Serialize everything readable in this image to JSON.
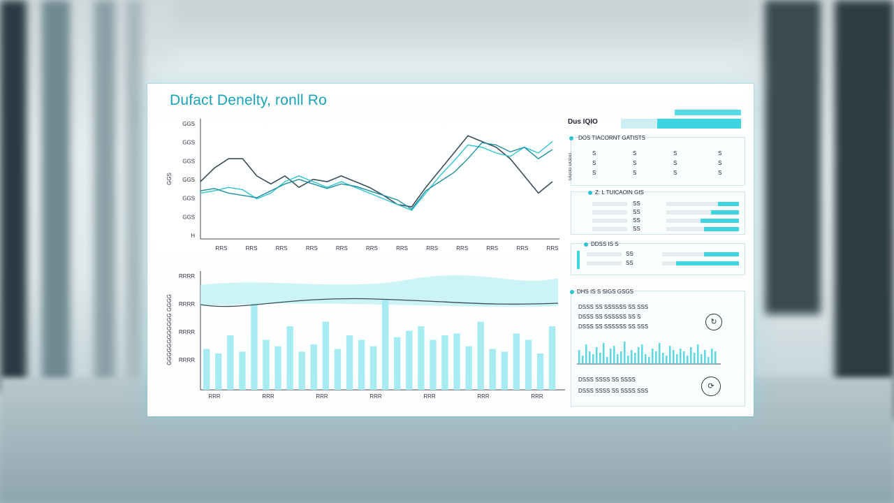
{
  "dashboard": {
    "title": "Dufact Denelty, ronll Ro"
  },
  "top_chart": {
    "y_ticks": [
      "GGS",
      "GGS",
      "GGS",
      "GGS",
      "GGS",
      "GGS",
      "H"
    ],
    "y_label": "GGS",
    "x_ticks": [
      "RRS",
      "RRS",
      "RRS",
      "RRS",
      "RRS",
      "RRS",
      "RRS",
      "RRS",
      "RRS",
      "RRS",
      "RRS",
      "RRS"
    ]
  },
  "bottom_chart": {
    "y_ticks": [
      "RRRR",
      "RRRR",
      "RRRR",
      "RRRR"
    ],
    "y_label": "GGGGGGGGGGGG GGGG",
    "x_ticks": [
      "RRR",
      "RRR",
      "RRR",
      "RRR",
      "RRR",
      "RRR",
      "RRR"
    ]
  },
  "sidebar": {
    "summary_label": "Dus IQIO",
    "card1": {
      "title": "DOS TIACORNT GATISTS",
      "rows": [
        [
          "S",
          "S",
          "S",
          "S"
        ],
        [
          "S",
          "S",
          "S",
          "S"
        ],
        [
          "S",
          "S",
          "S",
          "S"
        ]
      ],
      "side_text": "GGGG GGGG"
    },
    "card2": {
      "title": "Z: L TUICAOIN GIS",
      "row_values": [
        "SS",
        "SS",
        "SS",
        "SS"
      ]
    },
    "card3": {
      "title": "DDSS IS S",
      "row_values": [
        "SS",
        "SS"
      ]
    },
    "card4": {
      "title": "DHS IS S SIGS GSGS",
      "lines": [
        "DSSS SS SSSSSS SS SSS",
        "DSSS SS SSSSSS SS S",
        "DSSS SS SSSSSS SS SSS"
      ],
      "footer_lines": [
        "DSSS SSSS SS SSSS",
        "DSSS SSSS SS SSSS SSS"
      ]
    }
  },
  "colors": {
    "accent": "#1aa3b8",
    "cyan": "#3dd3df",
    "dark_line": "#3a4d57"
  },
  "chart_data": [
    {
      "type": "line",
      "x": [
        0,
        1,
        2,
        3,
        4,
        5,
        6,
        7,
        8,
        9,
        10,
        11,
        12,
        13,
        14,
        15,
        16,
        17,
        18,
        19,
        20,
        21,
        22,
        23,
        24,
        25
      ],
      "series": [
        {
          "values": [
            50,
            62,
            70,
            70,
            55,
            48,
            55,
            45,
            52,
            50,
            55,
            50,
            45,
            38,
            30,
            28,
            45,
            60,
            75,
            90,
            85,
            80,
            70,
            55,
            40,
            50
          ]
        },
        {
          "values": [
            40,
            42,
            45,
            43,
            35,
            40,
            50,
            55,
            50,
            45,
            50,
            45,
            40,
            35,
            30,
            25,
            40,
            55,
            68,
            82,
            80,
            75,
            72,
            80,
            75,
            85
          ]
        },
        {
          "values": [
            42,
            44,
            40,
            38,
            36,
            42,
            48,
            52,
            48,
            44,
            48,
            46,
            42,
            38,
            34,
            26,
            42,
            50,
            58,
            70,
            84,
            82,
            76,
            80,
            70,
            78
          ]
        }
      ]
    },
    {
      "type": "bar",
      "values": [
        45,
        40,
        60,
        42,
        95,
        55,
        48,
        70,
        42,
        50,
        75,
        45,
        60,
        55,
        48,
        100,
        58,
        65,
        70,
        55,
        60,
        62,
        48,
        75,
        45,
        42,
        62,
        55,
        40,
        70
      ]
    }
  ]
}
